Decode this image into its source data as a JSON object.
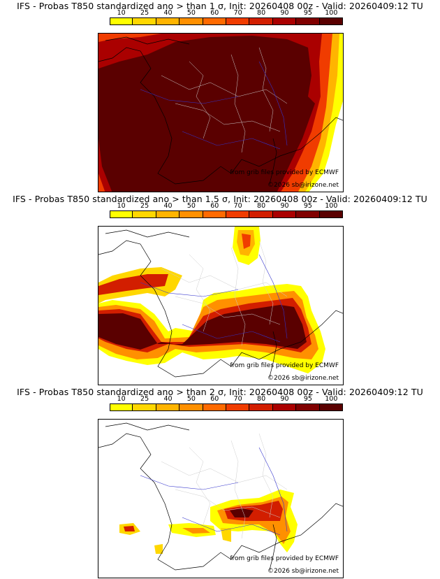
{
  "colorbar": {
    "labels": [
      "10",
      "25",
      "40",
      "50",
      "60",
      "70",
      "80",
      "90",
      "95",
      "100"
    ],
    "colors": [
      "#ffff00",
      "#ffd700",
      "#ffb400",
      "#ff9000",
      "#ff6a00",
      "#f03c00",
      "#d21e00",
      "#aa0000",
      "#800000",
      "#5a0000"
    ]
  },
  "panels": [
    {
      "title": "IFS - Probas T850  standardized ano > than 1 σ, Init: 20260408 00z - Valid: 20260409:12 TU",
      "coverage": "extensive"
    },
    {
      "title": "IFS - Probas T850  standardized ano > than 1.5 σ, Init: 20260408 00z - Valid: 20260409:12 TU",
      "coverage": "moderate"
    },
    {
      "title": "IFS - Probas T850  standardized ano > than 2 σ, Init: 20260408 00z - Valid: 20260409:12 TU",
      "coverage": "limited"
    }
  ],
  "credits": {
    "source": "from grib files provided by ECMWF",
    "copyright": "©2026 sb@irizone.net"
  }
}
